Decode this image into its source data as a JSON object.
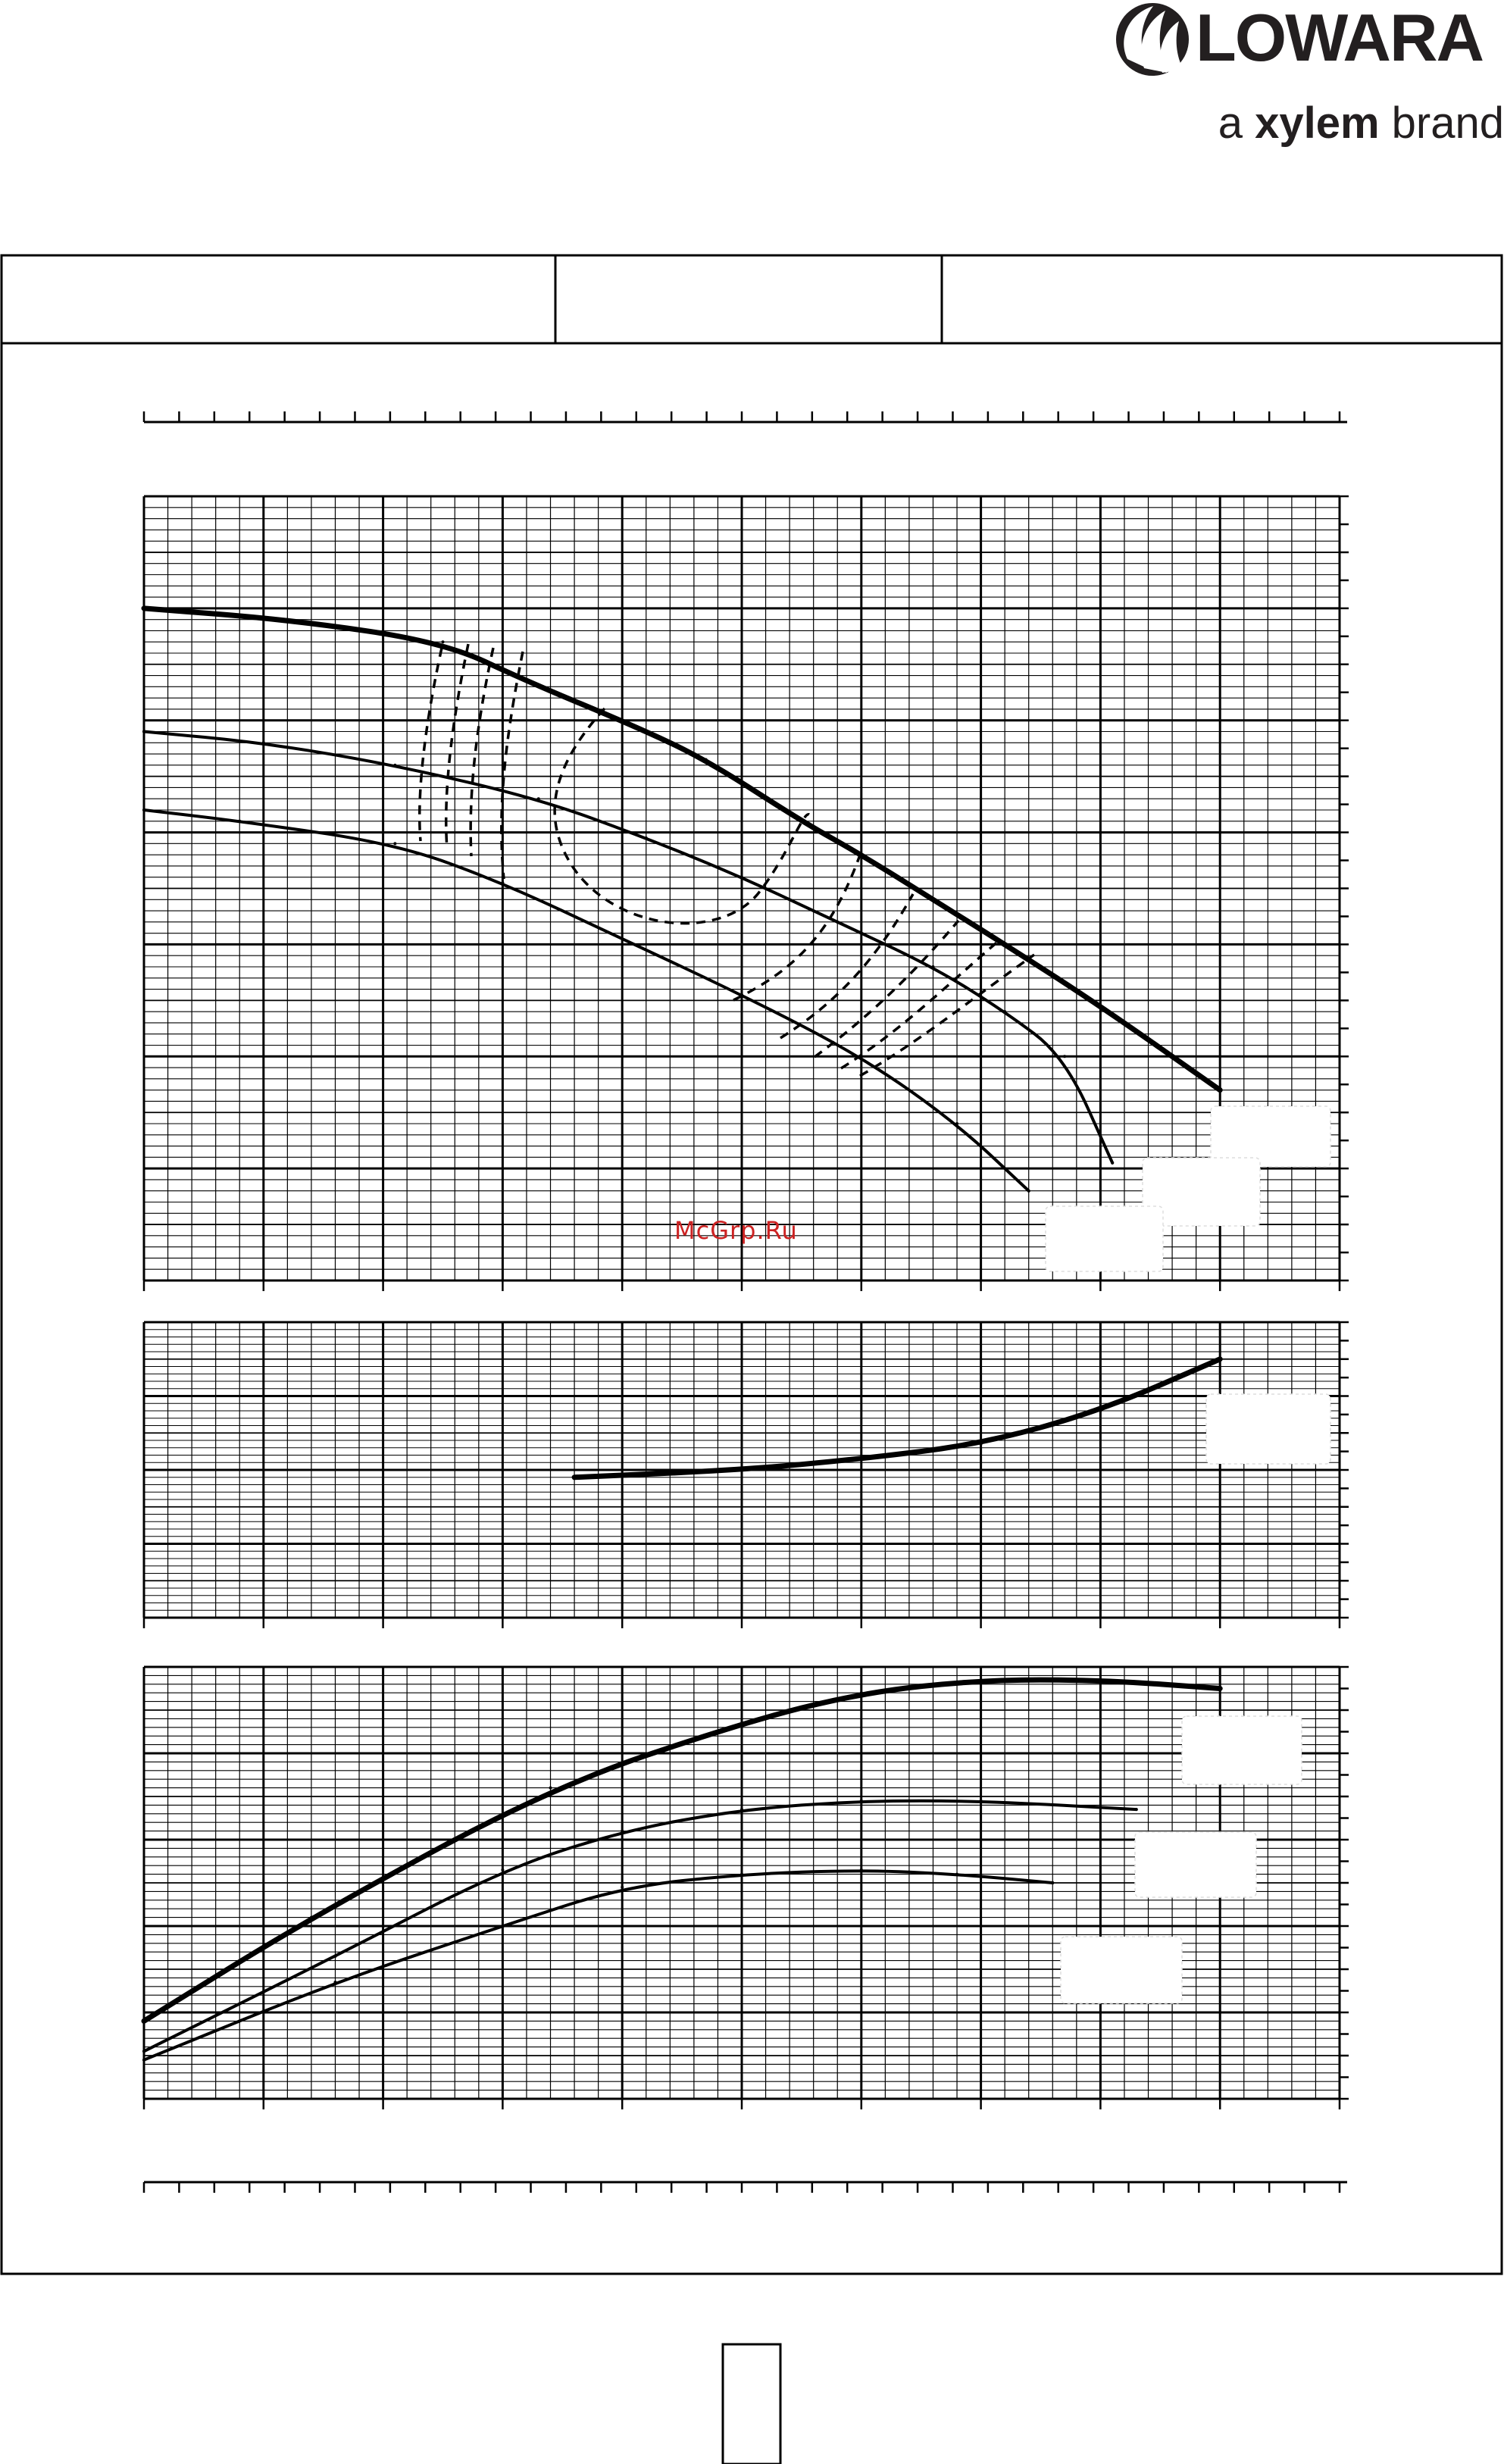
{
  "brand": {
    "name": "LOWARA",
    "tagline_prefix": "a ",
    "tagline_bold": "xylem",
    "tagline_suffix": " brand"
  },
  "watermark": "McGrp.Ru",
  "chart_data": [
    {
      "type": "line",
      "title": "",
      "xlabel": "",
      "ylabel": "",
      "xlim": [
        0,
        50
      ],
      "ylim": [
        0,
        7
      ],
      "grid": true,
      "series": [
        {
          "style": "thick",
          "x": [
            0,
            6,
            12.5,
            16,
            20.5,
            23.5,
            27.5,
            30,
            33,
            36,
            40,
            45
          ],
          "y": [
            6.0,
            5.9,
            5.7,
            5.35,
            4.95,
            4.65,
            4.1,
            3.8,
            3.4,
            3.0,
            2.45,
            1.7
          ]
        },
        {
          "style": "thin",
          "x": [
            0,
            5,
            10.5,
            16.5,
            21,
            25,
            29,
            33,
            36,
            38.5,
            40.5
          ],
          "y": [
            4.9,
            4.8,
            4.6,
            4.3,
            3.95,
            3.6,
            3.2,
            2.8,
            2.4,
            2.0,
            1.05
          ]
        },
        {
          "style": "thin",
          "x": [
            0,
            4,
            10.5,
            15,
            20,
            25,
            30,
            34,
            37
          ],
          "y": [
            4.2,
            4.1,
            3.9,
            3.55,
            3.05,
            2.55,
            2.0,
            1.4,
            0.8
          ]
        }
      ]
    },
    {
      "type": "line",
      "title": "",
      "xlabel": "",
      "ylabel": "",
      "xlim": [
        0,
        50
      ],
      "ylim": [
        0,
        4
      ],
      "grid": true,
      "series": [
        {
          "style": "thick",
          "x": [
            18,
            25,
            30,
            35,
            40,
            45
          ],
          "y": [
            1.9,
            2.0,
            2.15,
            2.35,
            2.8,
            3.5
          ]
        }
      ]
    },
    {
      "type": "line",
      "title": "",
      "xlabel": "",
      "ylabel": "",
      "xlim": [
        0,
        50
      ],
      "ylim": [
        0,
        5
      ],
      "grid": true,
      "series": [
        {
          "style": "thick",
          "x": [
            0,
            7,
            17,
            25,
            30,
            35,
            40,
            45
          ],
          "y": [
            0.9,
            2.1,
            3.6,
            4.35,
            4.7,
            4.85,
            4.85,
            4.75
          ]
        },
        {
          "style": "thin",
          "x": [
            0,
            8,
            15,
            20,
            25,
            30,
            35,
            41.5
          ],
          "y": [
            0.55,
            1.65,
            2.65,
            3.1,
            3.35,
            3.45,
            3.45,
            3.35
          ]
        },
        {
          "style": "thin",
          "x": [
            0,
            8,
            15,
            20,
            25,
            30,
            34,
            38
          ],
          "y": [
            0.45,
            1.35,
            2.0,
            2.45,
            2.6,
            2.65,
            2.6,
            2.5
          ]
        }
      ]
    }
  ]
}
